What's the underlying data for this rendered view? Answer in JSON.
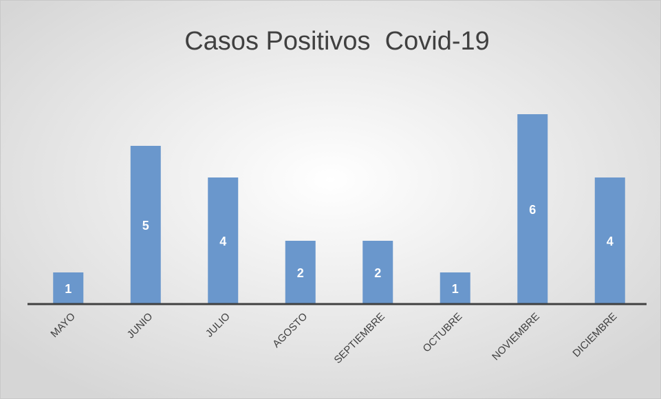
{
  "chart_data": {
    "type": "bar",
    "title": "Casos Positivos  Covid-19",
    "categories": [
      "MAYO",
      "JUNIO",
      "JULIO",
      "AGOSTO",
      "SEPTIEMBRE",
      "OCTUBRE",
      "NOVIEMBRE",
      "DICIEMBRE"
    ],
    "values": [
      1,
      5,
      4,
      2,
      2,
      1,
      6,
      4
    ],
    "color": "#6a97cc"
  }
}
